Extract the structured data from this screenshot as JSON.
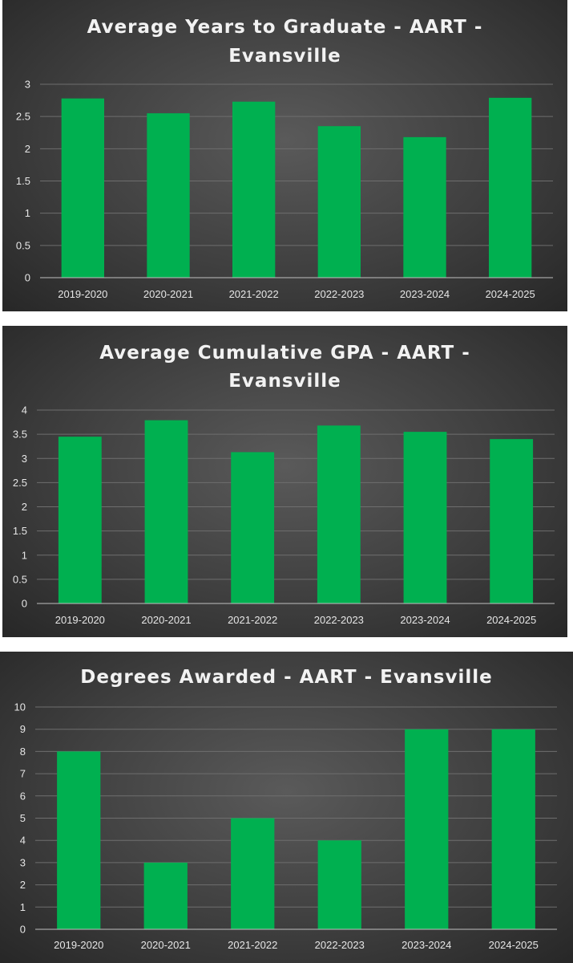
{
  "colors": {
    "bar": "#00b050",
    "grid": "#6e6e6e",
    "axis": "#bfbfbf",
    "text": "#e6e6e6",
    "title": "#f2f2f2"
  },
  "chart_data": [
    {
      "type": "bar",
      "title": "Average Years to Graduate - AART - Evansville",
      "title_lines": [
        "Average Years to Graduate - AART -",
        "Evansville"
      ],
      "categories": [
        "2019-2020",
        "2020-2021",
        "2021-2022",
        "2022-2023",
        "2023-2024",
        "2024-2025"
      ],
      "values": [
        2.78,
        2.55,
        2.73,
        2.35,
        2.18,
        2.79
      ],
      "ylim": [
        0,
        3
      ],
      "yticks": [
        "0",
        "0.5",
        "1",
        "1.5",
        "2",
        "2.5",
        "3"
      ],
      "grid": true,
      "legend": "none"
    },
    {
      "type": "bar",
      "title": "Average Cumulative GPA - AART - Evansville",
      "title_lines": [
        "Average Cumulative GPA - AART -",
        "Evansville"
      ],
      "categories": [
        "2019-2020",
        "2020-2021",
        "2021-2022",
        "2022-2023",
        "2023-2024",
        "2024-2025"
      ],
      "values": [
        3.45,
        3.79,
        3.13,
        3.68,
        3.55,
        3.4
      ],
      "ylim": [
        0,
        4
      ],
      "yticks": [
        "0",
        "0.5",
        "1",
        "1.5",
        "2",
        "2.5",
        "3",
        "3.5",
        "4"
      ],
      "grid": true,
      "legend": "none"
    },
    {
      "type": "bar",
      "title": "Degrees Awarded - AART - Evansville",
      "title_lines": [
        "Degrees Awarded - AART - Evansville"
      ],
      "categories": [
        "2019-2020",
        "2020-2021",
        "2021-2022",
        "2022-2023",
        "2023-2024",
        "2024-2025"
      ],
      "values": [
        8,
        3,
        5,
        4,
        9,
        9
      ],
      "ylim": [
        0,
        10
      ],
      "yticks": [
        "0",
        "1",
        "2",
        "3",
        "4",
        "5",
        "6",
        "7",
        "8",
        "9",
        "10"
      ],
      "grid": true,
      "legend": "none"
    }
  ]
}
